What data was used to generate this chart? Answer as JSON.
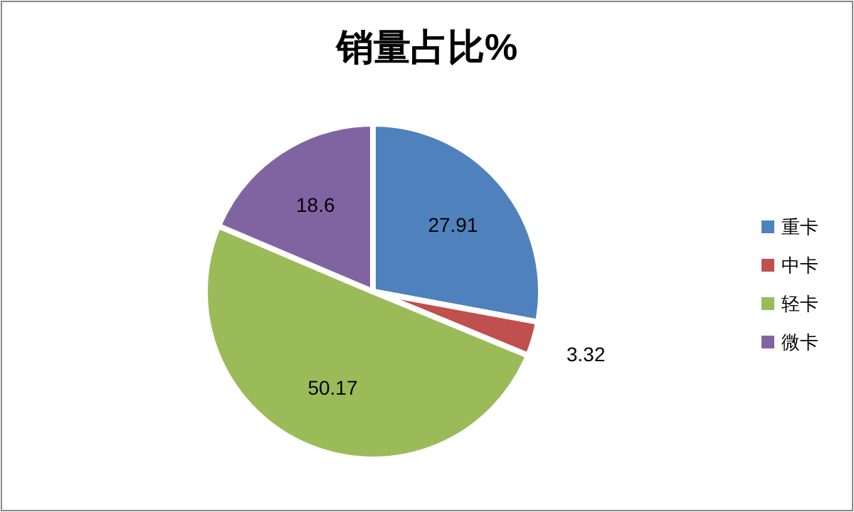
{
  "chart_data": {
    "type": "pie",
    "title": "销量占比%",
    "categories": [
      "重卡",
      "中卡",
      "轻卡",
      "微卡"
    ],
    "values": [
      27.91,
      3.32,
      50.17,
      18.6
    ],
    "colors": [
      "#4f81bd",
      "#c0504d",
      "#9bbb59",
      "#8064a2"
    ],
    "data_labels": true,
    "legend": "right"
  }
}
